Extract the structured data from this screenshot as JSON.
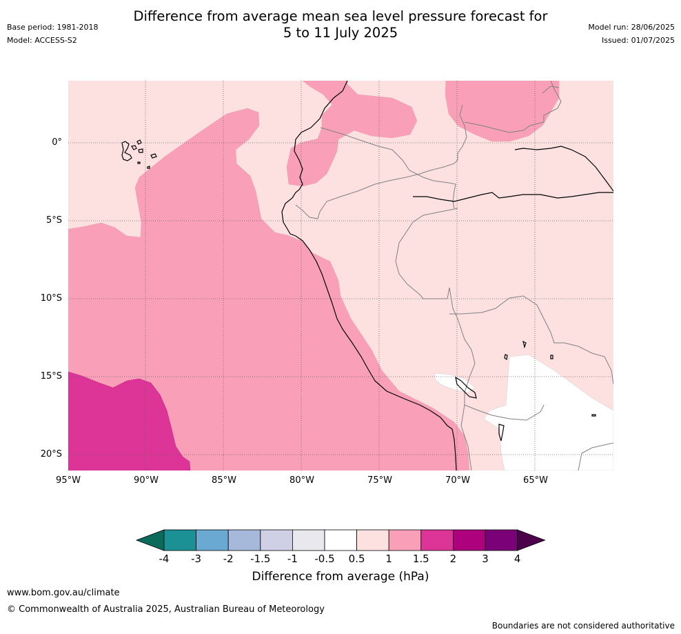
{
  "header": {
    "title_line1": "Difference from average mean sea level pressure forecast for",
    "title_line2": "5 to 11 July 2025",
    "base_period": "Base period: 1981-2018",
    "model": "Model: ACCESS-S2",
    "model_run": "Model run: 28/06/2025",
    "issued": "Issued: 01/07/2025"
  },
  "map": {
    "lat_labels": [
      "0°",
      "5°S",
      "10°S",
      "15°S",
      "20°S"
    ],
    "lon_labels": [
      "95°W",
      "90°W",
      "85°W",
      "80°W",
      "75°W",
      "70°W",
      "65°W"
    ],
    "colors": {
      "anomaly_0_5_to_1": "#fde0e0",
      "anomaly_1_to_1_5": "#f9a0b8",
      "anomaly_1_5_to_2": "#dd3497",
      "anomaly_neutral": "#ffffff",
      "coast": "#000000",
      "border": "#808080",
      "grid": "#666666"
    }
  },
  "colorbar": {
    "ticks": [
      "-4",
      "-3",
      "-2",
      "-1.5",
      "-1",
      "-0.5",
      "0.5",
      "1",
      "1.5",
      "2",
      "3",
      "4"
    ],
    "colors": [
      "#0b6b5a",
      "#1b9196",
      "#6aaad2",
      "#a6b9da",
      "#cfd0e6",
      "#e9e8ee",
      "#ffffff",
      "#fde0e0",
      "#f9a0b8",
      "#dd3497",
      "#ae017e",
      "#7a0177",
      "#4d004b"
    ],
    "label": "Difference from average (hPa)"
  },
  "footer": {
    "website": "www.bom.gov.au/climate",
    "copyright": "© Commonwealth of Australia 2025, Australian Bureau of Meteorology",
    "disclaimer": "Boundaries are not considered authoritative"
  }
}
